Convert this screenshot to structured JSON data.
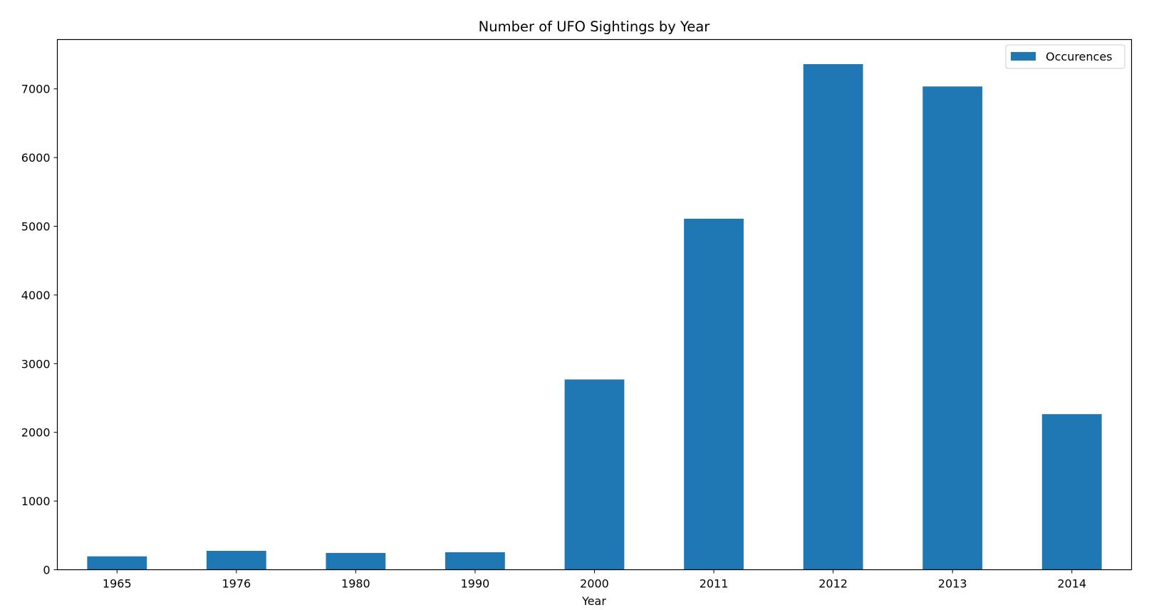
{
  "chart_data": {
    "type": "bar",
    "title": "Number of UFO Sightings by Year",
    "xlabel": "Year",
    "ylabel": "",
    "categories": [
      "1965",
      "1976",
      "1980",
      "1990",
      "2000",
      "2011",
      "2012",
      "2013",
      "2014"
    ],
    "series": [
      {
        "name": "Occurences",
        "values": [
          195,
          275,
          245,
          255,
          2770,
          5110,
          7360,
          7035,
          2265
        ],
        "color": "#1f77b4"
      }
    ],
    "ylim": [
      0,
      7718
    ],
    "yticks": [
      0,
      1000,
      2000,
      3000,
      4000,
      5000,
      6000,
      7000
    ],
    "grid": false,
    "legend": "top-right"
  }
}
